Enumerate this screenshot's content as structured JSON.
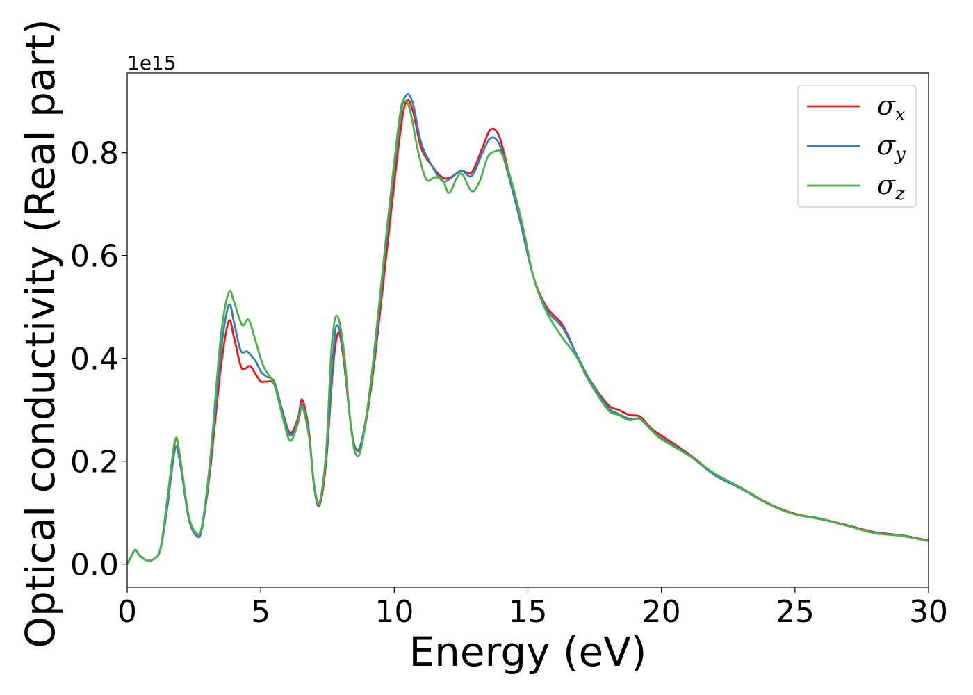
{
  "chart_data": {
    "type": "line",
    "title": "",
    "xlabel": "Energy (eV)",
    "ylabel": "Optical conductivity (Real part)",
    "y_offset_label": "1e15",
    "xlim": [
      0,
      30
    ],
    "ylim": [
      -0.045,
      0.955
    ],
    "x_ticks": [
      0,
      5,
      10,
      15,
      20,
      25,
      30
    ],
    "x_tick_labels": [
      "0",
      "5",
      "10",
      "15",
      "20",
      "25",
      "30"
    ],
    "y_ticks": [
      0.0,
      0.2,
      0.4,
      0.6,
      0.8
    ],
    "y_tick_labels": [
      "0.0",
      "0.2",
      "0.4",
      "0.6",
      "0.8"
    ],
    "grid": false,
    "legend_position": "top-right",
    "series": [
      {
        "name": "σx",
        "symbol": "σ",
        "subscript": "x",
        "color": "#e41a1c",
        "points": [
          [
            0,
            0.0
          ],
          [
            0.15,
            0.015
          ],
          [
            0.3,
            0.027
          ],
          [
            0.5,
            0.015
          ],
          [
            0.75,
            0.007
          ],
          [
            1.0,
            0.01
          ],
          [
            1.25,
            0.03
          ],
          [
            1.5,
            0.12
          ],
          [
            1.8,
            0.24
          ],
          [
            2.0,
            0.2
          ],
          [
            2.3,
            0.09
          ],
          [
            2.6,
            0.055
          ],
          [
            2.8,
            0.07
          ],
          [
            3.1,
            0.18
          ],
          [
            3.5,
            0.38
          ],
          [
            3.8,
            0.472
          ],
          [
            4.0,
            0.44
          ],
          [
            4.25,
            0.385
          ],
          [
            4.4,
            0.38
          ],
          [
            4.6,
            0.385
          ],
          [
            4.8,
            0.37
          ],
          [
            5.0,
            0.355
          ],
          [
            5.2,
            0.355
          ],
          [
            5.5,
            0.35
          ],
          [
            5.8,
            0.3
          ],
          [
            6.1,
            0.255
          ],
          [
            6.4,
            0.285
          ],
          [
            6.55,
            0.32
          ],
          [
            6.8,
            0.26
          ],
          [
            7.0,
            0.15
          ],
          [
            7.2,
            0.115
          ],
          [
            7.45,
            0.2
          ],
          [
            7.7,
            0.38
          ],
          [
            7.9,
            0.45
          ],
          [
            8.1,
            0.4
          ],
          [
            8.35,
            0.28
          ],
          [
            8.55,
            0.225
          ],
          [
            8.8,
            0.24
          ],
          [
            9.2,
            0.37
          ],
          [
            9.7,
            0.6
          ],
          [
            10.2,
            0.83
          ],
          [
            10.45,
            0.9
          ],
          [
            10.7,
            0.88
          ],
          [
            11.0,
            0.81
          ],
          [
            11.4,
            0.775
          ],
          [
            11.8,
            0.752
          ],
          [
            12.1,
            0.752
          ],
          [
            12.5,
            0.765
          ],
          [
            12.9,
            0.762
          ],
          [
            13.3,
            0.81
          ],
          [
            13.6,
            0.845
          ],
          [
            13.9,
            0.835
          ],
          [
            14.2,
            0.78
          ],
          [
            14.7,
            0.67
          ],
          [
            15.2,
            0.56
          ],
          [
            15.7,
            0.5
          ],
          [
            16.3,
            0.465
          ],
          [
            16.8,
            0.41
          ],
          [
            17.3,
            0.36
          ],
          [
            18.0,
            0.31
          ],
          [
            18.4,
            0.3
          ],
          [
            18.8,
            0.29
          ],
          [
            19.2,
            0.287
          ],
          [
            19.6,
            0.265
          ],
          [
            20.0,
            0.25
          ],
          [
            21.0,
            0.215
          ],
          [
            22.0,
            0.175
          ],
          [
            23.0,
            0.148
          ],
          [
            24.0,
            0.118
          ],
          [
            25.0,
            0.098
          ],
          [
            26.0,
            0.088
          ],
          [
            27.0,
            0.075
          ],
          [
            28.0,
            0.062
          ],
          [
            29.0,
            0.056
          ],
          [
            30.0,
            0.046
          ]
        ]
      },
      {
        "name": "σy",
        "symbol": "σ",
        "subscript": "y",
        "color": "#377eb8",
        "points": [
          [
            0,
            0.0
          ],
          [
            0.15,
            0.015
          ],
          [
            0.3,
            0.027
          ],
          [
            0.5,
            0.015
          ],
          [
            0.75,
            0.007
          ],
          [
            1.0,
            0.01
          ],
          [
            1.25,
            0.03
          ],
          [
            1.5,
            0.11
          ],
          [
            1.8,
            0.225
          ],
          [
            2.0,
            0.19
          ],
          [
            2.3,
            0.09
          ],
          [
            2.6,
            0.055
          ],
          [
            2.8,
            0.07
          ],
          [
            3.1,
            0.19
          ],
          [
            3.5,
            0.41
          ],
          [
            3.8,
            0.503
          ],
          [
            4.0,
            0.47
          ],
          [
            4.25,
            0.415
          ],
          [
            4.5,
            0.413
          ],
          [
            4.8,
            0.395
          ],
          [
            5.0,
            0.375
          ],
          [
            5.2,
            0.365
          ],
          [
            5.5,
            0.355
          ],
          [
            5.8,
            0.3
          ],
          [
            6.1,
            0.25
          ],
          [
            6.4,
            0.28
          ],
          [
            6.55,
            0.31
          ],
          [
            6.8,
            0.255
          ],
          [
            7.0,
            0.15
          ],
          [
            7.2,
            0.118
          ],
          [
            7.45,
            0.21
          ],
          [
            7.7,
            0.4
          ],
          [
            7.85,
            0.465
          ],
          [
            8.1,
            0.41
          ],
          [
            8.35,
            0.28
          ],
          [
            8.55,
            0.225
          ],
          [
            8.8,
            0.245
          ],
          [
            9.2,
            0.38
          ],
          [
            9.7,
            0.63
          ],
          [
            10.2,
            0.86
          ],
          [
            10.45,
            0.912
          ],
          [
            10.7,
            0.895
          ],
          [
            11.0,
            0.82
          ],
          [
            11.4,
            0.775
          ],
          [
            11.8,
            0.745
          ],
          [
            12.1,
            0.75
          ],
          [
            12.5,
            0.765
          ],
          [
            12.9,
            0.755
          ],
          [
            13.3,
            0.8
          ],
          [
            13.6,
            0.828
          ],
          [
            13.9,
            0.82
          ],
          [
            14.2,
            0.77
          ],
          [
            14.7,
            0.67
          ],
          [
            15.2,
            0.56
          ],
          [
            15.7,
            0.495
          ],
          [
            16.3,
            0.46
          ],
          [
            16.8,
            0.41
          ],
          [
            17.3,
            0.36
          ],
          [
            18.0,
            0.305
          ],
          [
            18.4,
            0.292
          ],
          [
            18.8,
            0.283
          ],
          [
            19.2,
            0.282
          ],
          [
            19.6,
            0.262
          ],
          [
            20.0,
            0.245
          ],
          [
            21.0,
            0.213
          ],
          [
            22.0,
            0.173
          ],
          [
            23.0,
            0.146
          ],
          [
            24.0,
            0.117
          ],
          [
            25.0,
            0.097
          ],
          [
            26.0,
            0.087
          ],
          [
            27.0,
            0.074
          ],
          [
            28.0,
            0.061
          ],
          [
            29.0,
            0.055
          ],
          [
            30.0,
            0.045
          ]
        ]
      },
      {
        "name": "σz",
        "symbol": "σ",
        "subscript": "z",
        "color": "#4daf4a",
        "points": [
          [
            0,
            0.0
          ],
          [
            0.15,
            0.015
          ],
          [
            0.3,
            0.028
          ],
          [
            0.5,
            0.015
          ],
          [
            0.75,
            0.007
          ],
          [
            1.0,
            0.01
          ],
          [
            1.25,
            0.032
          ],
          [
            1.5,
            0.125
          ],
          [
            1.8,
            0.243
          ],
          [
            2.0,
            0.2
          ],
          [
            2.3,
            0.095
          ],
          [
            2.6,
            0.06
          ],
          [
            2.8,
            0.075
          ],
          [
            3.1,
            0.2
          ],
          [
            3.5,
            0.44
          ],
          [
            3.8,
            0.528
          ],
          [
            4.0,
            0.51
          ],
          [
            4.3,
            0.465
          ],
          [
            4.55,
            0.475
          ],
          [
            4.8,
            0.435
          ],
          [
            5.1,
            0.385
          ],
          [
            5.5,
            0.35
          ],
          [
            5.8,
            0.29
          ],
          [
            6.1,
            0.24
          ],
          [
            6.4,
            0.275
          ],
          [
            6.55,
            0.305
          ],
          [
            6.8,
            0.25
          ],
          [
            7.0,
            0.155
          ],
          [
            7.2,
            0.12
          ],
          [
            7.45,
            0.22
          ],
          [
            7.65,
            0.42
          ],
          [
            7.85,
            0.483
          ],
          [
            8.1,
            0.42
          ],
          [
            8.35,
            0.28
          ],
          [
            8.55,
            0.215
          ],
          [
            8.8,
            0.235
          ],
          [
            9.2,
            0.39
          ],
          [
            9.7,
            0.64
          ],
          [
            10.2,
            0.87
          ],
          [
            10.4,
            0.9
          ],
          [
            10.6,
            0.88
          ],
          [
            10.9,
            0.8
          ],
          [
            11.2,
            0.748
          ],
          [
            11.5,
            0.752
          ],
          [
            11.8,
            0.748
          ],
          [
            12.05,
            0.722
          ],
          [
            12.35,
            0.752
          ],
          [
            12.55,
            0.758
          ],
          [
            12.9,
            0.725
          ],
          [
            13.2,
            0.745
          ],
          [
            13.5,
            0.792
          ],
          [
            13.8,
            0.803
          ],
          [
            14.0,
            0.8
          ],
          [
            14.3,
            0.76
          ],
          [
            14.8,
            0.66
          ],
          [
            15.2,
            0.56
          ],
          [
            15.7,
            0.49
          ],
          [
            16.3,
            0.44
          ],
          [
            16.8,
            0.405
          ],
          [
            17.3,
            0.355
          ],
          [
            18.0,
            0.3
          ],
          [
            18.4,
            0.29
          ],
          [
            18.8,
            0.28
          ],
          [
            19.2,
            0.283
          ],
          [
            19.6,
            0.262
          ],
          [
            20.0,
            0.243
          ],
          [
            21.0,
            0.212
          ],
          [
            22.0,
            0.176
          ],
          [
            23.0,
            0.148
          ],
          [
            24.0,
            0.117
          ],
          [
            25.0,
            0.097
          ],
          [
            26.0,
            0.088
          ],
          [
            27.0,
            0.074
          ],
          [
            28.0,
            0.06
          ],
          [
            29.0,
            0.055
          ],
          [
            30.0,
            0.045
          ]
        ]
      }
    ]
  }
}
